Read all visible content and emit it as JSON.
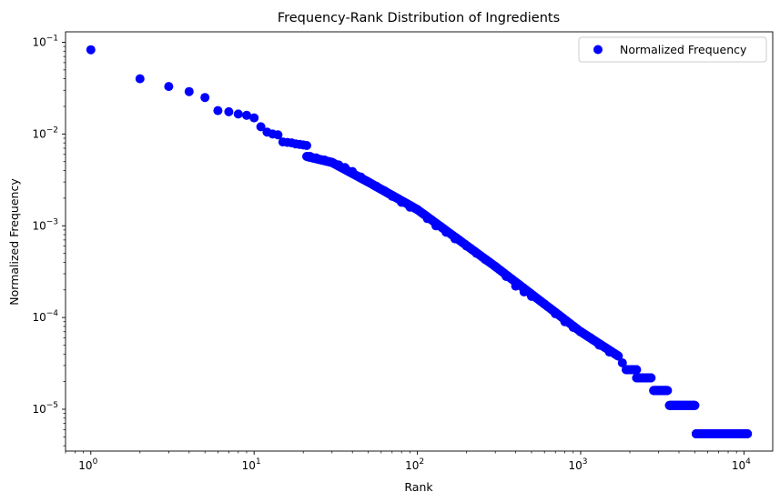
{
  "chart_data": {
    "type": "scatter",
    "title": "Frequency-Rank Distribution of Ingredients",
    "xlabel": "Rank",
    "ylabel": "Normalized Frequency",
    "xscale": "log",
    "yscale": "log",
    "xlim": [
      0.7,
      15000
    ],
    "ylim": [
      3.5e-06,
      0.13
    ],
    "x_ticks": [
      {
        "base": "10",
        "exp": "0",
        "value": 1
      },
      {
        "base": "10",
        "exp": "1",
        "value": 10
      },
      {
        "base": "10",
        "exp": "2",
        "value": 100
      },
      {
        "base": "10",
        "exp": "3",
        "value": 1000
      },
      {
        "base": "10",
        "exp": "4",
        "value": 10000
      }
    ],
    "y_ticks": [
      {
        "base": "10",
        "exp": "−5",
        "value": 1e-05
      },
      {
        "base": "10",
        "exp": "−4",
        "value": 0.0001
      },
      {
        "base": "10",
        "exp": "−3",
        "value": 0.001
      },
      {
        "base": "10",
        "exp": "−2",
        "value": 0.01
      },
      {
        "base": "10",
        "exp": "−1",
        "value": 0.1
      }
    ],
    "grid": false,
    "legend": {
      "placement": "top-right"
    },
    "series": [
      {
        "name": "Normalized Frequency",
        "color": "#0000ff",
        "marker": "circle",
        "points": [
          [
            1,
            0.083
          ],
          [
            2,
            0.04
          ],
          [
            3,
            0.033
          ],
          [
            4,
            0.029
          ],
          [
            5,
            0.025
          ],
          [
            6,
            0.018
          ],
          [
            7,
            0.0175
          ],
          [
            8,
            0.0165
          ],
          [
            9,
            0.016
          ],
          [
            10,
            0.015
          ],
          [
            11,
            0.012
          ],
          [
            12,
            0.0105
          ],
          [
            13,
            0.01
          ],
          [
            14,
            0.0098
          ],
          [
            15,
            0.0082
          ],
          [
            16,
            0.0081
          ],
          [
            17,
            0.008
          ],
          [
            18,
            0.0078
          ],
          [
            19,
            0.0077
          ],
          [
            20,
            0.0076
          ],
          [
            21,
            0.0075
          ],
          [
            22,
            0.0057
          ],
          [
            24,
            0.0055
          ],
          [
            27,
            0.0052
          ],
          [
            30,
            0.0049
          ],
          [
            33,
            0.0046
          ],
          [
            36,
            0.0043
          ],
          [
            40,
            0.0039
          ],
          [
            45,
            0.0034
          ],
          [
            50,
            0.003
          ],
          [
            56,
            0.0027
          ],
          [
            63,
            0.0024
          ],
          [
            70,
            0.0021
          ],
          [
            80,
            0.0018
          ],
          [
            90,
            0.0016
          ],
          [
            100,
            0.0015
          ],
          [
            115,
            0.0012
          ],
          [
            130,
            0.001
          ],
          [
            150,
            0.00085
          ],
          [
            170,
            0.00072
          ],
          [
            200,
            0.0006
          ],
          [
            230,
            0.0005
          ],
          [
            260,
            0.00043
          ],
          [
            300,
            0.00036
          ],
          [
            350,
            0.00028
          ],
          [
            400,
            0.00022
          ],
          [
            450,
            0.00019
          ],
          [
            500,
            0.00017
          ],
          [
            600,
            0.00014
          ],
          [
            700,
            0.00011
          ],
          [
            800,
            9e-05
          ],
          [
            900,
            7.8e-05
          ],
          [
            1000,
            7e-05
          ],
          [
            1150,
            6e-05
          ],
          [
            1300,
            5e-05
          ],
          [
            1500,
            4.2e-05
          ],
          [
            1700,
            3.8e-05
          ],
          [
            1800,
            3.2e-05
          ],
          [
            2000,
            2.7e-05
          ],
          [
            2300,
            2.2e-05
          ],
          [
            2600,
            2.2e-05
          ],
          [
            2800,
            1.6e-05
          ],
          [
            3000,
            1.6e-05
          ],
          [
            3300,
            1.6e-05
          ],
          [
            3500,
            1.1e-05
          ],
          [
            4000,
            1.1e-05
          ],
          [
            4500,
            1.1e-05
          ],
          [
            5000,
            1.1e-05
          ],
          [
            5100,
            5.4e-06
          ],
          [
            6000,
            5.4e-06
          ],
          [
            7000,
            5.4e-06
          ],
          [
            8000,
            5.4e-06
          ],
          [
            9000,
            5.4e-06
          ],
          [
            10500,
            5.4e-06
          ]
        ],
        "runs": [
          [
            21,
            30,
            0.0057,
            0.0049
          ],
          [
            30,
            50,
            0.0049,
            0.003
          ],
          [
            50,
            100,
            0.003,
            0.0015
          ],
          [
            100,
            300,
            0.0015,
            0.00036
          ],
          [
            300,
            1000,
            0.00036,
            7e-05
          ],
          [
            1000,
            1700,
            7e-05,
            3.8e-05
          ],
          [
            1900,
            2200,
            2.7e-05,
            2.7e-05
          ],
          [
            2200,
            2700,
            2.2e-05,
            2.2e-05
          ],
          [
            2800,
            3400,
            1.6e-05,
            1.6e-05
          ],
          [
            3500,
            5000,
            1.1e-05,
            1.1e-05
          ],
          [
            5100,
            10500,
            5.4e-06,
            5.4e-06
          ]
        ]
      }
    ]
  }
}
